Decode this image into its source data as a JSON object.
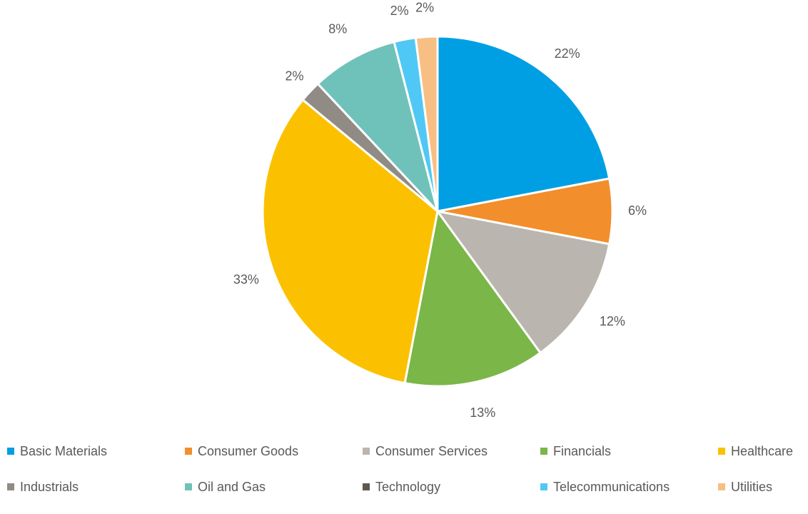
{
  "chart_data": {
    "type": "pie",
    "title": "",
    "legend_position": "bottom",
    "start_angle_deg": 0,
    "direction": "clockwise",
    "categories": [
      "Basic Materials",
      "Consumer Goods",
      "Consumer Services",
      "Financials",
      "Healthcare",
      "Industrials",
      "Oil and Gas",
      "Technology",
      "Telecommunications",
      "Utilities"
    ],
    "values": [
      22,
      6,
      12,
      13,
      33,
      2,
      8,
      0,
      2,
      2
    ],
    "labels": [
      "22%",
      "6%",
      "12%",
      "13%",
      "33%",
      "2%",
      "8%",
      "",
      "2%",
      "2%"
    ],
    "colors": [
      "#009FE3",
      "#F28E2B",
      "#BAB5AE",
      "#7AB648",
      "#FBC100",
      "#918B85",
      "#6FC2BA",
      "#5E5750",
      "#50C8F5",
      "#F7BF84"
    ]
  }
}
